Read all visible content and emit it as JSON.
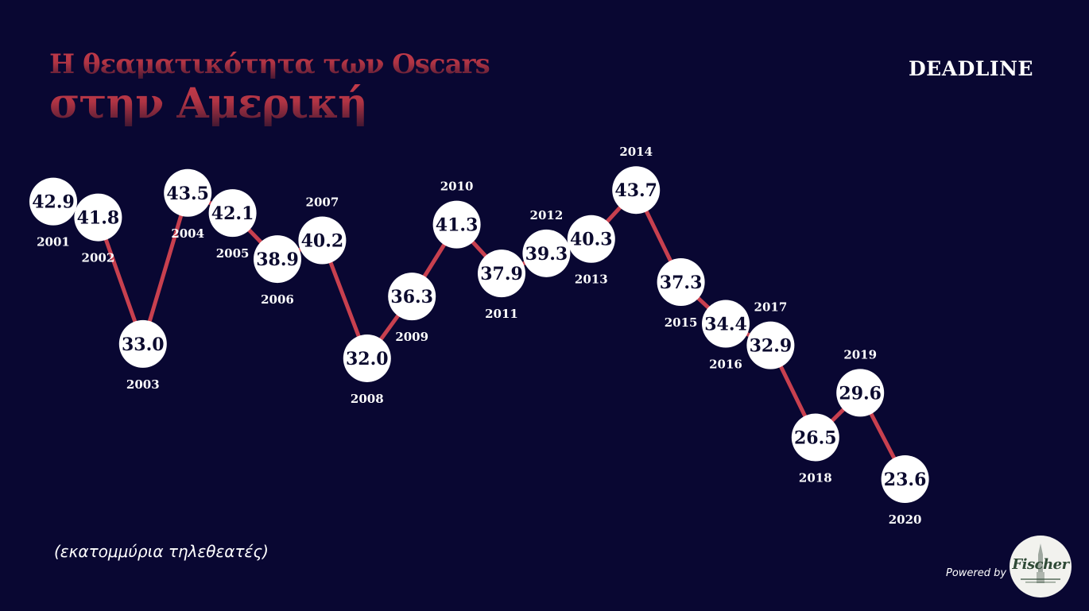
{
  "header": {
    "title_line1": "Η θεαματικότητα των Oscars",
    "title_line2": "στην Αμερική",
    "brand": "DEADLINE"
  },
  "chart_data": {
    "type": "line",
    "title": "Η θεαματικότητα των Oscars στην Αμερική",
    "unit_label": "(εκατομμύρια τηλεθεατές)",
    "x": [
      "2001",
      "2002",
      "2003",
      "2004",
      "2005",
      "2006",
      "2007",
      "2008",
      "2009",
      "2010",
      "2011",
      "2012",
      "2013",
      "2014",
      "2015",
      "2016",
      "2017",
      "2018",
      "2019",
      "2020"
    ],
    "values": [
      42.9,
      41.8,
      33.0,
      43.5,
      42.1,
      38.9,
      40.2,
      32.0,
      36.3,
      41.3,
      37.9,
      39.3,
      40.3,
      43.7,
      37.3,
      34.4,
      32.9,
      26.5,
      29.6,
      23.6
    ],
    "value_labels": [
      "42.9",
      "41.8",
      "33.0",
      "43.5",
      "42.1",
      "38.9",
      "40.2",
      "32.0",
      "36.3",
      "41.3",
      "37.9",
      "39.3",
      "40.3",
      "43.7",
      "37.3",
      "34.4",
      "32.9",
      "26.5",
      "29.6",
      "23.6"
    ],
    "year_label_positions": [
      "below",
      "below",
      "below",
      "below",
      "below",
      "below",
      "above",
      "below",
      "below",
      "above",
      "below",
      "above",
      "below",
      "above",
      "below",
      "below",
      "above",
      "below",
      "above",
      "below"
    ],
    "grid": false,
    "legend": "none",
    "colors": {
      "background": "#090732",
      "line": "#c8404f",
      "marker_fill": "#ffffff",
      "value_text": "#0b0a2e",
      "year_text": "#ffffff"
    }
  },
  "footer": {
    "powered_by": "Powered by",
    "sponsor_name": "Fischer",
    "sponsor_icon": "church-tower-icon"
  }
}
